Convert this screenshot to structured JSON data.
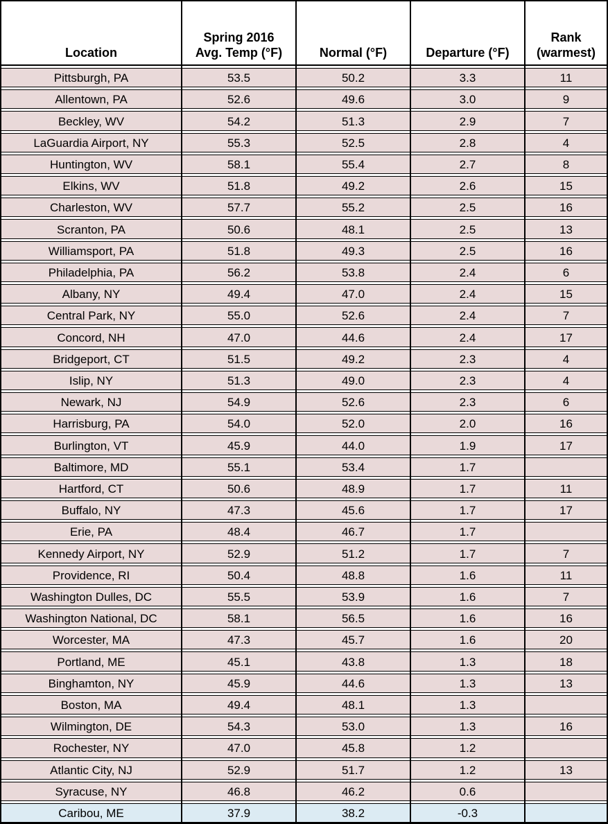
{
  "chart_data": {
    "type": "table",
    "columns": [
      "Location",
      "Spring 2016\nAvg. Temp (°F)",
      "Normal (°F)",
      "Departure (°F)",
      "Rank\n(warmest)"
    ],
    "colors": {
      "row_bg": "#e9d9d9",
      "below_normal_row_bg": "#dcebf3",
      "header_bg": "#ffffff",
      "border": "#000000",
      "text": "#000000"
    },
    "rows": [
      {
        "location": "Pittsburgh, PA",
        "avg_temp": "53.5",
        "normal": "50.2",
        "departure": "3.3",
        "rank": "11",
        "highlight": false
      },
      {
        "location": "Allentown, PA",
        "avg_temp": "52.6",
        "normal": "49.6",
        "departure": "3.0",
        "rank": "9",
        "highlight": false
      },
      {
        "location": "Beckley, WV",
        "avg_temp": "54.2",
        "normal": "51.3",
        "departure": "2.9",
        "rank": "7",
        "highlight": false
      },
      {
        "location": "LaGuardia Airport, NY",
        "avg_temp": "55.3",
        "normal": "52.5",
        "departure": "2.8",
        "rank": "4",
        "highlight": false
      },
      {
        "location": "Huntington, WV",
        "avg_temp": "58.1",
        "normal": "55.4",
        "departure": "2.7",
        "rank": "8",
        "highlight": false
      },
      {
        "location": "Elkins, WV",
        "avg_temp": "51.8",
        "normal": "49.2",
        "departure": "2.6",
        "rank": "15",
        "highlight": false
      },
      {
        "location": "Charleston, WV",
        "avg_temp": "57.7",
        "normal": "55.2",
        "departure": "2.5",
        "rank": "16",
        "highlight": false
      },
      {
        "location": "Scranton, PA",
        "avg_temp": "50.6",
        "normal": "48.1",
        "departure": "2.5",
        "rank": "13",
        "highlight": false
      },
      {
        "location": "Williamsport, PA",
        "avg_temp": "51.8",
        "normal": "49.3",
        "departure": "2.5",
        "rank": "16",
        "highlight": false
      },
      {
        "location": "Philadelphia, PA",
        "avg_temp": "56.2",
        "normal": "53.8",
        "departure": "2.4",
        "rank": "6",
        "highlight": false
      },
      {
        "location": "Albany, NY",
        "avg_temp": "49.4",
        "normal": "47.0",
        "departure": "2.4",
        "rank": "15",
        "highlight": false
      },
      {
        "location": "Central Park, NY",
        "avg_temp": "55.0",
        "normal": "52.6",
        "departure": "2.4",
        "rank": "7",
        "highlight": false
      },
      {
        "location": "Concord, NH",
        "avg_temp": "47.0",
        "normal": "44.6",
        "departure": "2.4",
        "rank": "17",
        "highlight": false
      },
      {
        "location": "Bridgeport, CT",
        "avg_temp": "51.5",
        "normal": "49.2",
        "departure": "2.3",
        "rank": "4",
        "highlight": false
      },
      {
        "location": "Islip, NY",
        "avg_temp": "51.3",
        "normal": "49.0",
        "departure": "2.3",
        "rank": "4",
        "highlight": false
      },
      {
        "location": "Newark, NJ",
        "avg_temp": "54.9",
        "normal": "52.6",
        "departure": "2.3",
        "rank": "6",
        "highlight": false
      },
      {
        "location": "Harrisburg, PA",
        "avg_temp": "54.0",
        "normal": "52.0",
        "departure": "2.0",
        "rank": "16",
        "highlight": false
      },
      {
        "location": "Burlington, VT",
        "avg_temp": "45.9",
        "normal": "44.0",
        "departure": "1.9",
        "rank": "17",
        "highlight": false
      },
      {
        "location": "Baltimore, MD",
        "avg_temp": "55.1",
        "normal": "53.4",
        "departure": "1.7",
        "rank": "",
        "highlight": false
      },
      {
        "location": "Hartford, CT",
        "avg_temp": "50.6",
        "normal": "48.9",
        "departure": "1.7",
        "rank": "11",
        "highlight": false
      },
      {
        "location": "Buffalo, NY",
        "avg_temp": "47.3",
        "normal": "45.6",
        "departure": "1.7",
        "rank": "17",
        "highlight": false
      },
      {
        "location": "Erie, PA",
        "avg_temp": "48.4",
        "normal": "46.7",
        "departure": "1.7",
        "rank": "",
        "highlight": false
      },
      {
        "location": "Kennedy Airport, NY",
        "avg_temp": "52.9",
        "normal": "51.2",
        "departure": "1.7",
        "rank": "7",
        "highlight": false
      },
      {
        "location": "Providence, RI",
        "avg_temp": "50.4",
        "normal": "48.8",
        "departure": "1.6",
        "rank": "11",
        "highlight": false
      },
      {
        "location": "Washington Dulles, DC",
        "avg_temp": "55.5",
        "normal": "53.9",
        "departure": "1.6",
        "rank": "7",
        "highlight": false
      },
      {
        "location": "Washington National, DC",
        "avg_temp": "58.1",
        "normal": "56.5",
        "departure": "1.6",
        "rank": "16",
        "highlight": false
      },
      {
        "location": "Worcester, MA",
        "avg_temp": "47.3",
        "normal": "45.7",
        "departure": "1.6",
        "rank": "20",
        "highlight": false
      },
      {
        "location": "Portland, ME",
        "avg_temp": "45.1",
        "normal": "43.8",
        "departure": "1.3",
        "rank": "18",
        "highlight": false
      },
      {
        "location": "Binghamton, NY",
        "avg_temp": "45.9",
        "normal": "44.6",
        "departure": "1.3",
        "rank": "13",
        "highlight": false
      },
      {
        "location": "Boston, MA",
        "avg_temp": "49.4",
        "normal": "48.1",
        "departure": "1.3",
        "rank": "",
        "highlight": false
      },
      {
        "location": "Wilmington, DE",
        "avg_temp": "54.3",
        "normal": "53.0",
        "departure": "1.3",
        "rank": "16",
        "highlight": false
      },
      {
        "location": "Rochester, NY",
        "avg_temp": "47.0",
        "normal": "45.8",
        "departure": "1.2",
        "rank": "",
        "highlight": false
      },
      {
        "location": "Atlantic City, NJ",
        "avg_temp": "52.9",
        "normal": "51.7",
        "departure": "1.2",
        "rank": "13",
        "highlight": false
      },
      {
        "location": "Syracuse, NY",
        "avg_temp": "46.8",
        "normal": "46.2",
        "departure": "0.6",
        "rank": "",
        "highlight": false
      },
      {
        "location": "Caribou, ME",
        "avg_temp": "37.9",
        "normal": "38.2",
        "departure": "-0.3",
        "rank": "",
        "highlight": true
      }
    ]
  }
}
